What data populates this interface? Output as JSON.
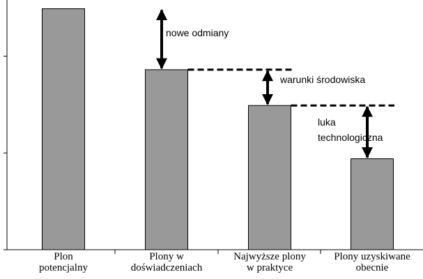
{
  "chart_data": {
    "type": "bar",
    "categories": [
      "Plon\npotencjalny",
      "Plony w\ndoświadczeniach",
      "Najwyższe plony\nw praktyce",
      "Plony uzyskiwane\nobecnie"
    ],
    "values": [
      2.49,
      1.86,
      1.49,
      0.94
    ],
    "color": "#999999",
    "ylim": [
      0,
      2.58
    ],
    "yticks": [
      0,
      1,
      2
    ],
    "annotations": [
      "nowe odmiany",
      "warunki środowiska",
      "luka\ntechnologiczna"
    ]
  }
}
